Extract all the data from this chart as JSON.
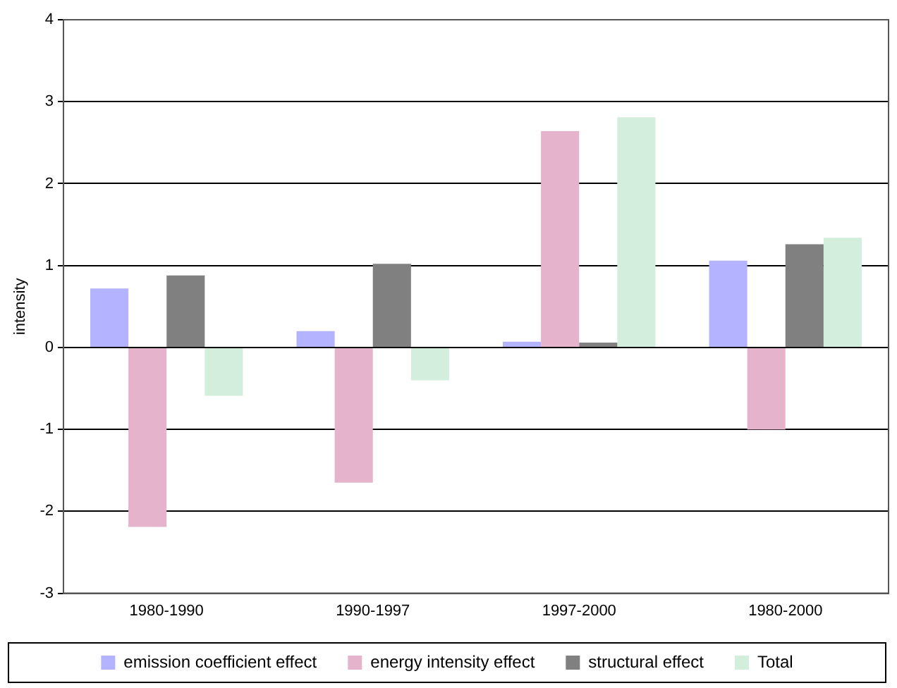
{
  "chart_data": {
    "type": "bar",
    "ylabel": "intensity",
    "categories": [
      "1980-1990",
      "1990-1997",
      "1997-2000",
      "1980-2000"
    ],
    "series": [
      {
        "name": "emission coefficient effect",
        "color": "#b3b3ff",
        "values": [
          0.72,
          0.2,
          0.07,
          1.06
        ]
      },
      {
        "name": "energy intensity effect",
        "color": "#e6b3cc",
        "values": [
          -2.19,
          -1.65,
          2.64,
          -1.0
        ]
      },
      {
        "name": "structural effect",
        "color": "#808080",
        "values": [
          0.88,
          1.02,
          0.06,
          1.26
        ]
      },
      {
        "name": "Total",
        "color": "#d4eedd",
        "values": [
          -0.59,
          -0.4,
          2.81,
          1.34
        ]
      }
    ],
    "ylim": [
      -3,
      4
    ],
    "yticks": [
      -3,
      -2,
      -1,
      0,
      1,
      2,
      3,
      4
    ],
    "grid": "y",
    "legend": "bottom"
  }
}
